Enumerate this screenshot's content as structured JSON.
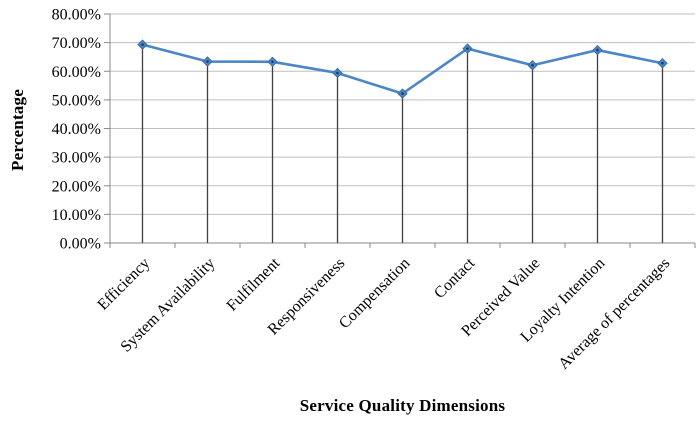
{
  "chart_data": {
    "type": "line",
    "title": "",
    "xlabel": "Service Quality Dimensions",
    "ylabel": "Percentage",
    "categories": [
      "Efficiency",
      "System Availability",
      "Fulfilment",
      "Responsiveness",
      "Compensation",
      "Contact",
      "Perceived Value",
      "Loyalty Intention",
      "Average of percentages"
    ],
    "series": [
      {
        "name": "Percentage",
        "values": [
          69.3,
          63.4,
          63.3,
          59.4,
          52.2,
          67.9,
          62.1,
          67.4,
          62.8
        ]
      }
    ],
    "ylim": [
      0,
      80
    ],
    "ytick_step": 10,
    "ytick_labels": [
      "0.00%",
      "10.00%",
      "20.00%",
      "30.00%",
      "40.00%",
      "50.00%",
      "60.00%",
      "70.00%",
      "80.00%"
    ],
    "grid": true,
    "legend": false,
    "marker": "diamond",
    "drop_lines": true,
    "colors": {
      "line": "#4a86c8",
      "marker_fill": "#4a86c8",
      "marker_edge": "#3a6ea5",
      "marker_dot": "#1f3b63",
      "gridline": "#bfbfbf",
      "axis": "#898989",
      "drop_line": "#3f3f3f",
      "text": "#000000"
    }
  }
}
